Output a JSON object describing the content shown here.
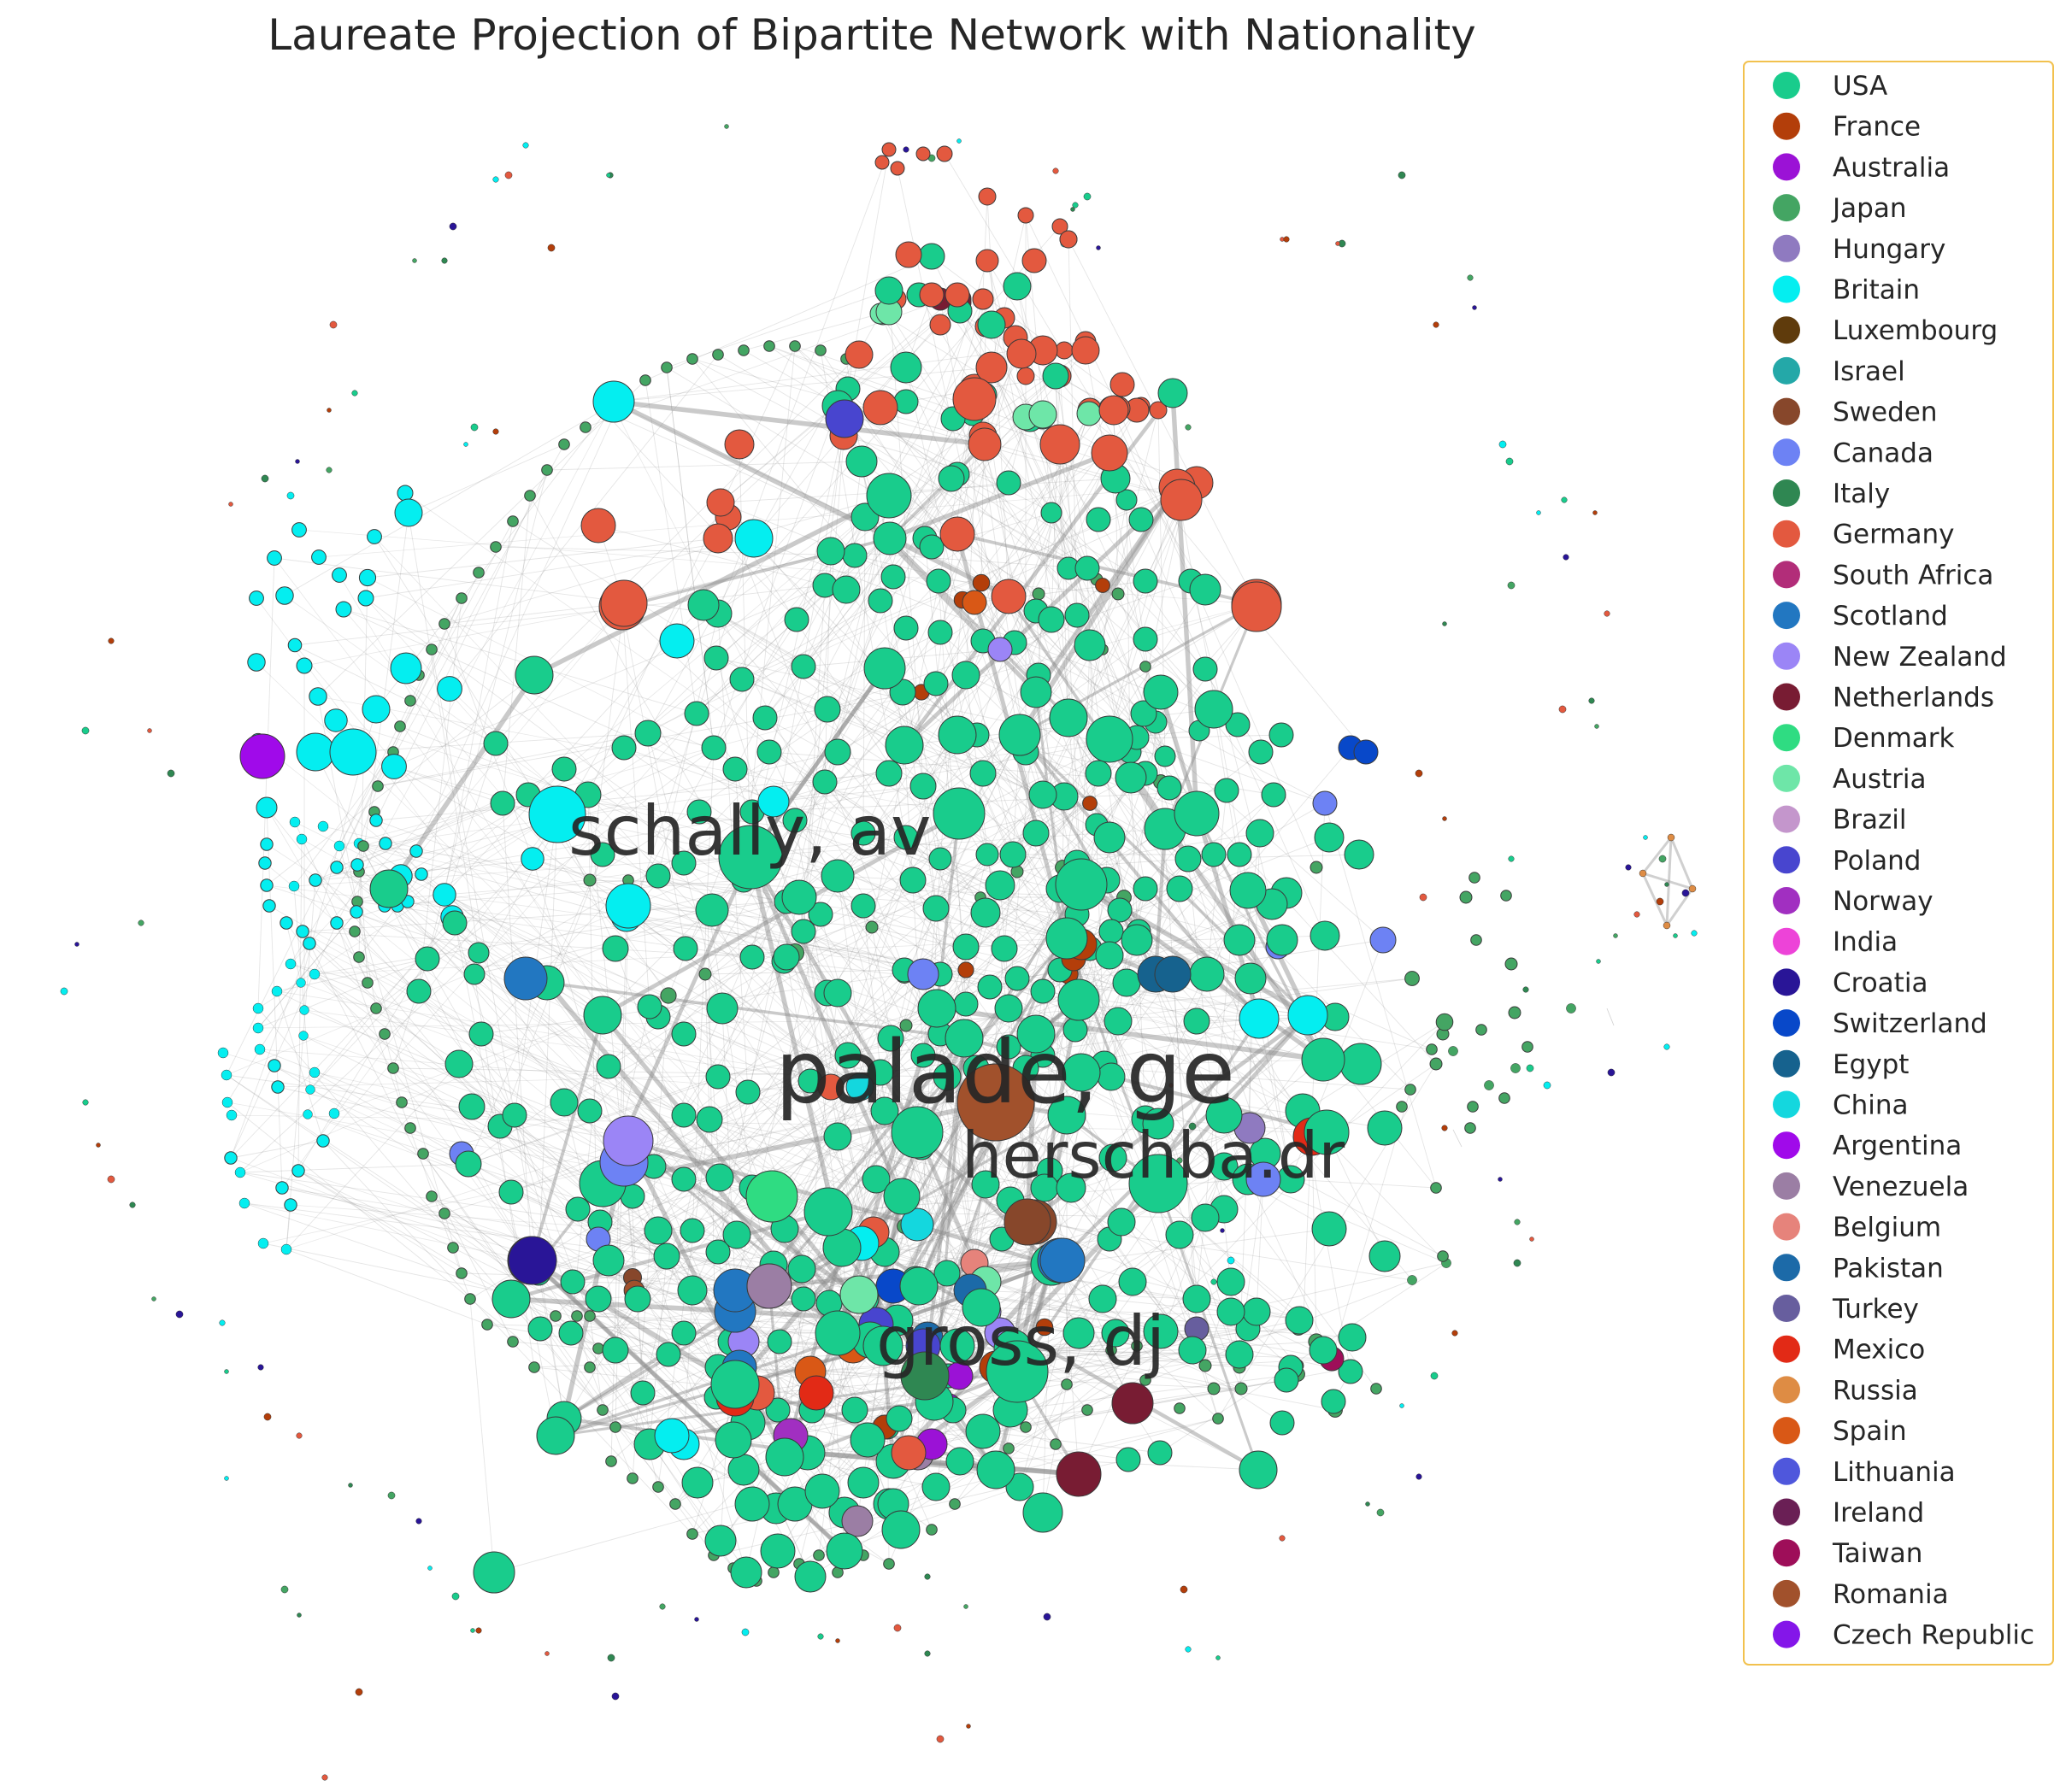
{
  "title": "Laureate Projection of Bipartite Network with Nationality",
  "legend": {
    "border_color": "#f2c14e",
    "items": [
      {
        "label": "USA",
        "color": "#19cc8c"
      },
      {
        "label": "France",
        "color": "#b33e0a"
      },
      {
        "label": "Australia",
        "color": "#9b12d6"
      },
      {
        "label": "Japan",
        "color": "#44a563"
      },
      {
        "label": "Hungary",
        "color": "#8f7ac0"
      },
      {
        "label": "Britain",
        "color": "#04eef0"
      },
      {
        "label": "Luxembourg",
        "color": "#5f3b0c"
      },
      {
        "label": "Israel",
        "color": "#24a8a8"
      },
      {
        "label": "Sweden",
        "color": "#87472b"
      },
      {
        "label": "Canada",
        "color": "#6d82f4"
      },
      {
        "label": "Italy",
        "color": "#2f8752"
      },
      {
        "label": "Germany",
        "color": "#e3593f"
      },
      {
        "label": "South Africa",
        "color": "#b22d79"
      },
      {
        "label": "Scotland",
        "color": "#2277c1"
      },
      {
        "label": "New Zealand",
        "color": "#9b85f6"
      },
      {
        "label": "Netherlands",
        "color": "#781c33"
      },
      {
        "label": "Denmark",
        "color": "#2fdc82"
      },
      {
        "label": "Austria",
        "color": "#6ee6a8"
      },
      {
        "label": "Brazil",
        "color": "#c496cc"
      },
      {
        "label": "Poland",
        "color": "#4845cf"
      },
      {
        "label": "Norway",
        "color": "#a12fc1"
      },
      {
        "label": "India",
        "color": "#ed43d8"
      },
      {
        "label": "Croatia",
        "color": "#291597"
      },
      {
        "label": "Switzerland",
        "color": "#0848c9"
      },
      {
        "label": "Egypt",
        "color": "#16628e"
      },
      {
        "label": "China",
        "color": "#14d7de"
      },
      {
        "label": "Argentina",
        "color": "#a00aea"
      },
      {
        "label": "Venezuela",
        "color": "#9b7ea4"
      },
      {
        "label": "Belgium",
        "color": "#e6837b"
      },
      {
        "label": "Pakistan",
        "color": "#1c6aa8"
      },
      {
        "label": "Turkey",
        "color": "#675e9e"
      },
      {
        "label": "Mexico",
        "color": "#e22a16"
      },
      {
        "label": "Russia",
        "color": "#de8c44"
      },
      {
        "label": "Spain",
        "color": "#d95816"
      },
      {
        "label": "Lithuania",
        "color": "#4f57dc"
      },
      {
        "label": "Ireland",
        "color": "#6a1f55"
      },
      {
        "label": "Taiwan",
        "color": "#9e0e59"
      },
      {
        "label": "Romania",
        "color": "#a1512c"
      },
      {
        "label": "Czech Republic",
        "color": "#8416e9"
      }
    ]
  },
  "labels": [
    {
      "text": "schally, av"
    },
    {
      "text": "palade, ge"
    },
    {
      "text": "herschba.dr"
    },
    {
      "text": "gross, dj"
    }
  ]
}
